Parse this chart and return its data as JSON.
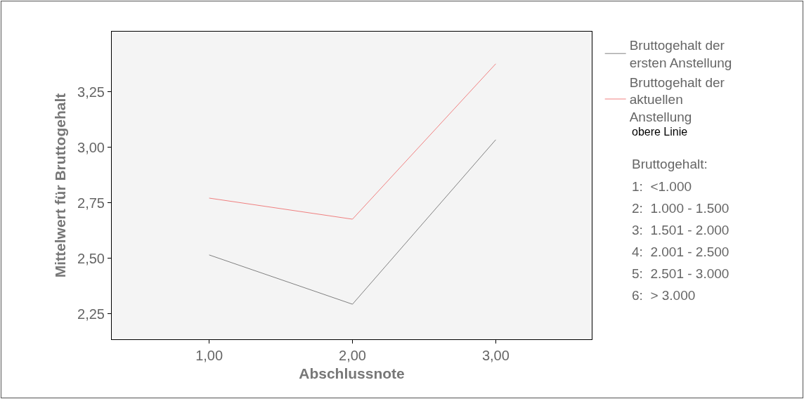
{
  "chart_data": {
    "type": "line",
    "xlabel": "Abschlussnote",
    "ylabel": "Mittelwert für Bruttogehalt",
    "x": [
      1,
      2,
      3
    ],
    "series": [
      {
        "name": "Bruttogehalt der ersten Anstellung",
        "color": "#808080",
        "values": [
          2.516,
          2.294,
          3.035
        ]
      },
      {
        "name": "Bruttogehalt der aktuellen Anstellung",
        "color": "#f08080",
        "values": [
          2.772,
          2.677,
          3.377
        ]
      }
    ],
    "xlim": [
      0.32,
      3.67
    ],
    "xticks": [
      {
        "value": 1,
        "label": "1,00"
      },
      {
        "value": 2,
        "label": "2,00"
      },
      {
        "value": 3,
        "label": "3,00"
      }
    ],
    "ylim": [
      2.136,
      3.522
    ],
    "yticks": [
      {
        "value": 2.25,
        "label": "2,25"
      },
      {
        "value": 2.5,
        "label": "2,50"
      },
      {
        "value": 2.75,
        "label": "2,75"
      },
      {
        "value": 3,
        "label": "3,00"
      },
      {
        "value": 3.25,
        "label": "3,25"
      }
    ],
    "grid": false,
    "legend": "right",
    "marker": "none",
    "line_style": "solid",
    "annotations": [
      "obere Linie",
      "Bruttogehalt:",
      "1:  <1.000",
      "2:  1.000 - 1.500",
      "3:  1.501 - 2.000",
      "4:  2.001 - 2.500",
      "5:  2.501 - 3.000",
      "6:  > 3.000"
    ]
  }
}
